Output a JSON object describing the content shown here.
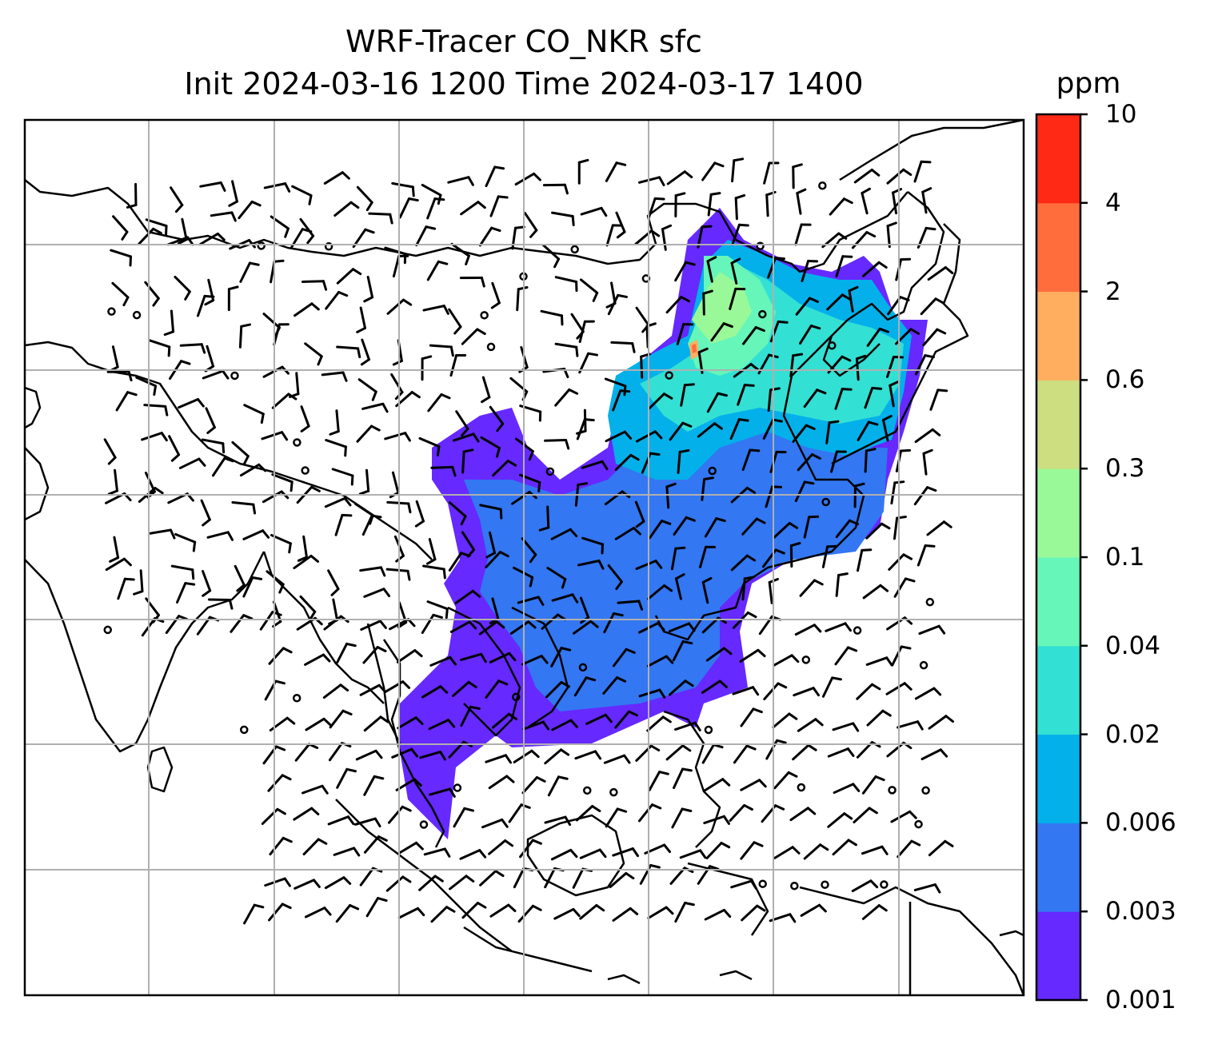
{
  "title": {
    "line1": "WRF-Tracer CO_NKR sfc",
    "line2": "Init 2024-03-16 1200 Time 2024-03-17 1400"
  },
  "colorbar": {
    "unit": "ppm",
    "ticks": [
      "10",
      "4",
      "2",
      "0.6",
      "0.3",
      "0.1",
      "0.04",
      "0.02",
      "0.006",
      "0.003",
      "0.001"
    ],
    "colors": [
      "#6629ff",
      "#3377f2",
      "#03b0ea",
      "#33e0d4",
      "#66f6b9",
      "#99f998",
      "#ccde80",
      "#ffae5f",
      "#ff6d3d",
      "#ff2916"
    ]
  },
  "map": {
    "gridlines": "on",
    "coastlines": "on",
    "wind_barbs": "on",
    "plume_colors_by_level": [
      "#6629ff",
      "#3377f2",
      "#03b0ea",
      "#33e0d4",
      "#66f6b9",
      "#99f998",
      "#ffae5f",
      "#ff6d3d"
    ]
  }
}
